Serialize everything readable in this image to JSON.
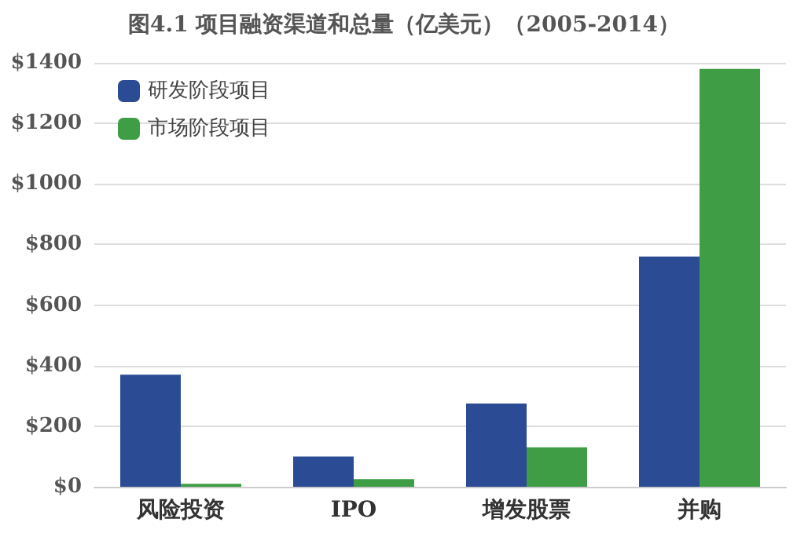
{
  "chart_data": {
    "type": "bar",
    "title": "图4.1 项目融资渠道和总量（亿美元）（2005-2014）",
    "categories": [
      "风险投资",
      "IPO",
      "增发股票",
      "并购"
    ],
    "series": [
      {
        "name": "研发阶段项目",
        "color": "#2b4c94",
        "values": [
          370,
          100,
          275,
          760
        ]
      },
      {
        "name": "市场阶段项目",
        "color": "#3f9e45",
        "values": [
          10,
          25,
          130,
          1380
        ]
      }
    ],
    "ylim": [
      0,
      1400
    ],
    "yticks": [
      {
        "value": 0,
        "label": "$0"
      },
      {
        "value": 200,
        "label": "$200"
      },
      {
        "value": 400,
        "label": "$400"
      },
      {
        "value": 600,
        "label": "$600"
      },
      {
        "value": 800,
        "label": "$800"
      },
      {
        "value": 1000,
        "label": "$1000"
      },
      {
        "value": 1200,
        "label": "$1200"
      },
      {
        "value": 1400,
        "label": "$1400"
      }
    ],
    "grid": "y",
    "legend": "top left"
  }
}
